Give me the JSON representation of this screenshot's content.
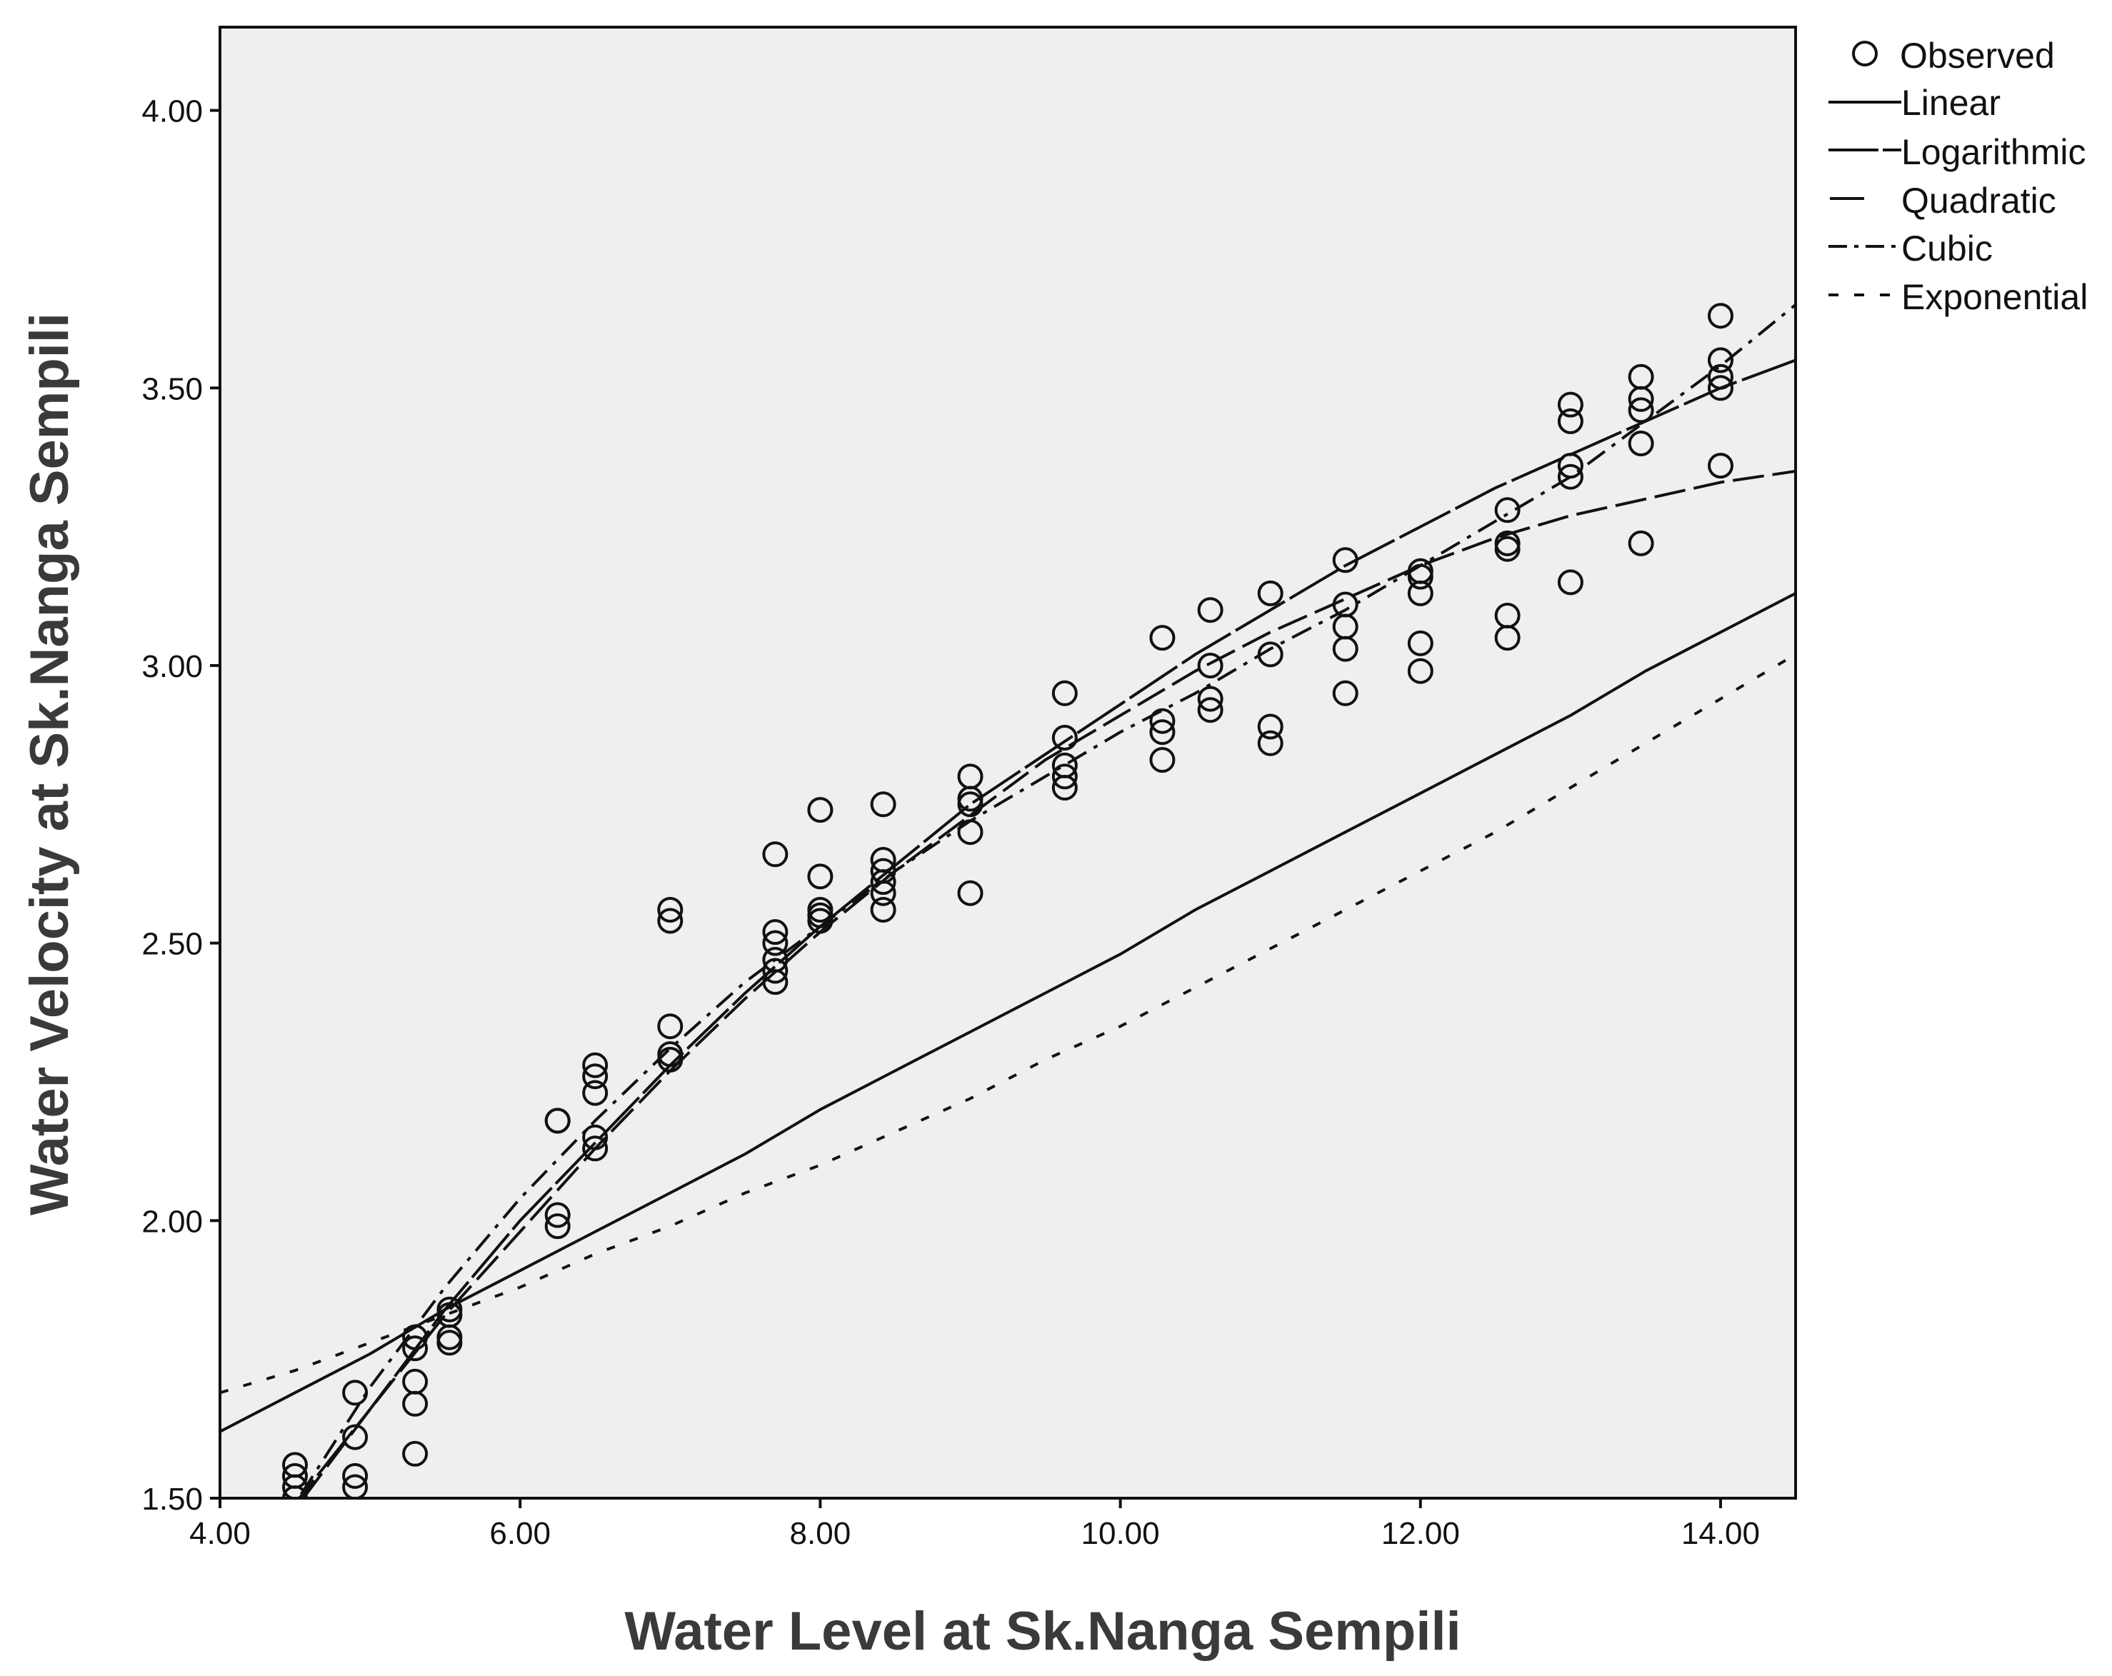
{
  "chart_data": {
    "type": "scatter",
    "title": "",
    "xlabel": "Water Level at Sk.Nanga Sempili",
    "ylabel": "Water Velocity at Sk.Nanga Sempili",
    "xlim": [
      4.0,
      14.5
    ],
    "ylim": [
      1.5,
      4.15
    ],
    "x_ticks": [
      4.0,
      6.0,
      8.0,
      10.0,
      12.0,
      14.0
    ],
    "x_tick_labels": [
      "4.00",
      "6.00",
      "8.00",
      "10.00",
      "12.00",
      "14.00"
    ],
    "y_ticks": [
      1.5,
      2.0,
      2.5,
      3.0,
      3.5,
      4.0
    ],
    "y_tick_labels": [
      "1.50",
      "2.00",
      "2.50",
      "3.00",
      "3.50",
      "4.00"
    ],
    "grid": false,
    "legend_position": "top-right-outside",
    "legend": [
      {
        "key": "observed",
        "label": "Observed",
        "style": "circle"
      },
      {
        "key": "linear",
        "label": "Linear",
        "style": "solid"
      },
      {
        "key": "logarithmic",
        "label": "Logarithmic",
        "style": "long-dash"
      },
      {
        "key": "quadratic",
        "label": "Quadratic",
        "style": "dash"
      },
      {
        "key": "cubic",
        "label": "Cubic",
        "style": "dash-dot"
      },
      {
        "key": "exponential",
        "label": "Exponential",
        "style": "short-dash"
      }
    ],
    "observed": {
      "x": [
        4.5,
        4.5,
        4.5,
        4.5,
        4.9,
        4.9,
        4.9,
        4.9,
        5.3,
        5.3,
        5.3,
        5.3,
        5.3,
        5.53,
        5.53,
        5.53,
        5.53,
        6.25,
        6.25,
        6.25,
        6.25,
        6.5,
        6.5,
        6.5,
        6.5,
        6.5,
        7.0,
        7.0,
        7.0,
        7.0,
        7.0,
        7.7,
        7.7,
        7.7,
        7.7,
        7.7,
        7.7,
        8.0,
        8.0,
        8.0,
        8.0,
        8.0,
        8.42,
        8.42,
        8.42,
        8.42,
        8.42,
        8.42,
        9.0,
        9.0,
        9.0,
        9.0,
        9.0,
        9.63,
        9.63,
        9.63,
        9.63,
        9.63,
        10.28,
        10.28,
        10.28,
        10.28,
        10.6,
        10.6,
        10.6,
        10.6,
        11.0,
        11.0,
        11.0,
        11.0,
        11.5,
        11.5,
        11.5,
        11.5,
        11.5,
        12.0,
        12.0,
        12.0,
        12.0,
        12.0,
        12.58,
        12.58,
        12.58,
        12.58,
        12.58,
        13.0,
        13.0,
        13.0,
        13.0,
        13.0,
        13.47,
        13.47,
        13.47,
        13.47,
        13.47,
        14.0,
        14.0,
        14.0,
        14.0,
        14.0
      ],
      "y": [
        1.56,
        1.54,
        1.52,
        1.5,
        1.69,
        1.61,
        1.54,
        1.52,
        1.79,
        1.77,
        1.71,
        1.67,
        1.58,
        1.84,
        1.83,
        1.79,
        1.78,
        2.18,
        2.18,
        2.01,
        1.99,
        2.28,
        2.26,
        2.23,
        2.15,
        2.13,
        2.56,
        2.54,
        2.35,
        2.3,
        2.29,
        2.66,
        2.52,
        2.5,
        2.47,
        2.45,
        2.43,
        2.74,
        2.62,
        2.56,
        2.55,
        2.54,
        2.75,
        2.65,
        2.63,
        2.61,
        2.59,
        2.56,
        2.8,
        2.76,
        2.75,
        2.7,
        2.59,
        2.95,
        2.87,
        2.82,
        2.8,
        2.78,
        3.05,
        2.9,
        2.88,
        2.83,
        3.1,
        3.0,
        2.94,
        2.92,
        3.13,
        3.02,
        2.89,
        2.86,
        3.19,
        3.11,
        3.07,
        3.03,
        2.95,
        3.17,
        3.16,
        3.13,
        3.04,
        2.99,
        3.28,
        3.22,
        3.21,
        3.09,
        3.05,
        3.47,
        3.44,
        3.36,
        3.34,
        3.15,
        3.52,
        3.48,
        3.46,
        3.4,
        3.22,
        3.63,
        3.55,
        3.52,
        3.5,
        3.36
      ]
    },
    "series": [
      {
        "name": "Linear",
        "x": [
          4.0,
          4.5,
          5.0,
          5.5,
          6.0,
          6.5,
          7.0,
          7.5,
          8.0,
          8.5,
          9.0,
          9.5,
          10.0,
          10.5,
          11.0,
          11.5,
          12.0,
          12.5,
          13.0,
          13.5,
          14.0,
          14.5
        ],
        "y": [
          1.62,
          1.69,
          1.76,
          1.84,
          1.91,
          1.98,
          2.05,
          2.12,
          2.2,
          2.27,
          2.34,
          2.41,
          2.48,
          2.56,
          2.63,
          2.7,
          2.77,
          2.84,
          2.91,
          2.99,
          3.06,
          3.13
        ]
      },
      {
        "name": "Logarithmic",
        "x": [
          4.4,
          4.5,
          5.0,
          5.5,
          6.0,
          6.5,
          7.0,
          7.5,
          8.0,
          8.5,
          9.0,
          9.5,
          10.0,
          10.5,
          11.0,
          11.5,
          12.0,
          12.5,
          13.0,
          13.5,
          14.0,
          14.5
        ],
        "y": [
          1.45,
          1.49,
          1.66,
          1.84,
          2.0,
          2.14,
          2.28,
          2.41,
          2.53,
          2.64,
          2.75,
          2.84,
          2.93,
          3.02,
          3.1,
          3.18,
          3.25,
          3.32,
          3.38,
          3.44,
          3.5,
          3.55
        ]
      },
      {
        "name": "Quadratic",
        "x": [
          4.4,
          4.5,
          5.0,
          5.5,
          6.0,
          6.5,
          7.0,
          7.5,
          8.0,
          8.5,
          9.0,
          9.5,
          10.0,
          10.5,
          11.0,
          11.5,
          12.0,
          12.5,
          13.0,
          13.5,
          14.0,
          14.5
        ],
        "y": [
          1.44,
          1.48,
          1.66,
          1.83,
          1.98,
          2.13,
          2.27,
          2.4,
          2.52,
          2.63,
          2.73,
          2.83,
          2.91,
          2.99,
          3.06,
          3.12,
          3.18,
          3.23,
          3.27,
          3.3,
          3.33,
          3.35
        ]
      },
      {
        "name": "Cubic",
        "x": [
          4.4,
          4.5,
          5.0,
          5.5,
          6.0,
          6.5,
          7.0,
          7.5,
          8.0,
          8.5,
          9.0,
          9.5,
          10.0,
          10.5,
          11.0,
          11.5,
          12.0,
          12.5,
          13.0,
          13.5,
          14.0,
          14.5
        ],
        "y": [
          1.44,
          1.49,
          1.7,
          1.88,
          2.04,
          2.18,
          2.31,
          2.43,
          2.53,
          2.63,
          2.72,
          2.8,
          2.88,
          2.95,
          3.03,
          3.1,
          3.18,
          3.26,
          3.34,
          3.44,
          3.54,
          3.65
        ]
      },
      {
        "name": "Exponential",
        "x": [
          4.0,
          4.5,
          5.0,
          5.5,
          6.0,
          6.5,
          7.0,
          7.5,
          8.0,
          8.5,
          9.0,
          9.5,
          10.0,
          10.5,
          11.0,
          11.5,
          12.0,
          12.5,
          13.0,
          13.5,
          14.0,
          14.5
        ],
        "y": [
          1.69,
          1.73,
          1.78,
          1.83,
          1.88,
          1.94,
          1.99,
          2.05,
          2.1,
          2.16,
          2.22,
          2.29,
          2.35,
          2.42,
          2.49,
          2.56,
          2.63,
          2.7,
          2.78,
          2.86,
          2.94,
          3.02
        ]
      }
    ]
  }
}
